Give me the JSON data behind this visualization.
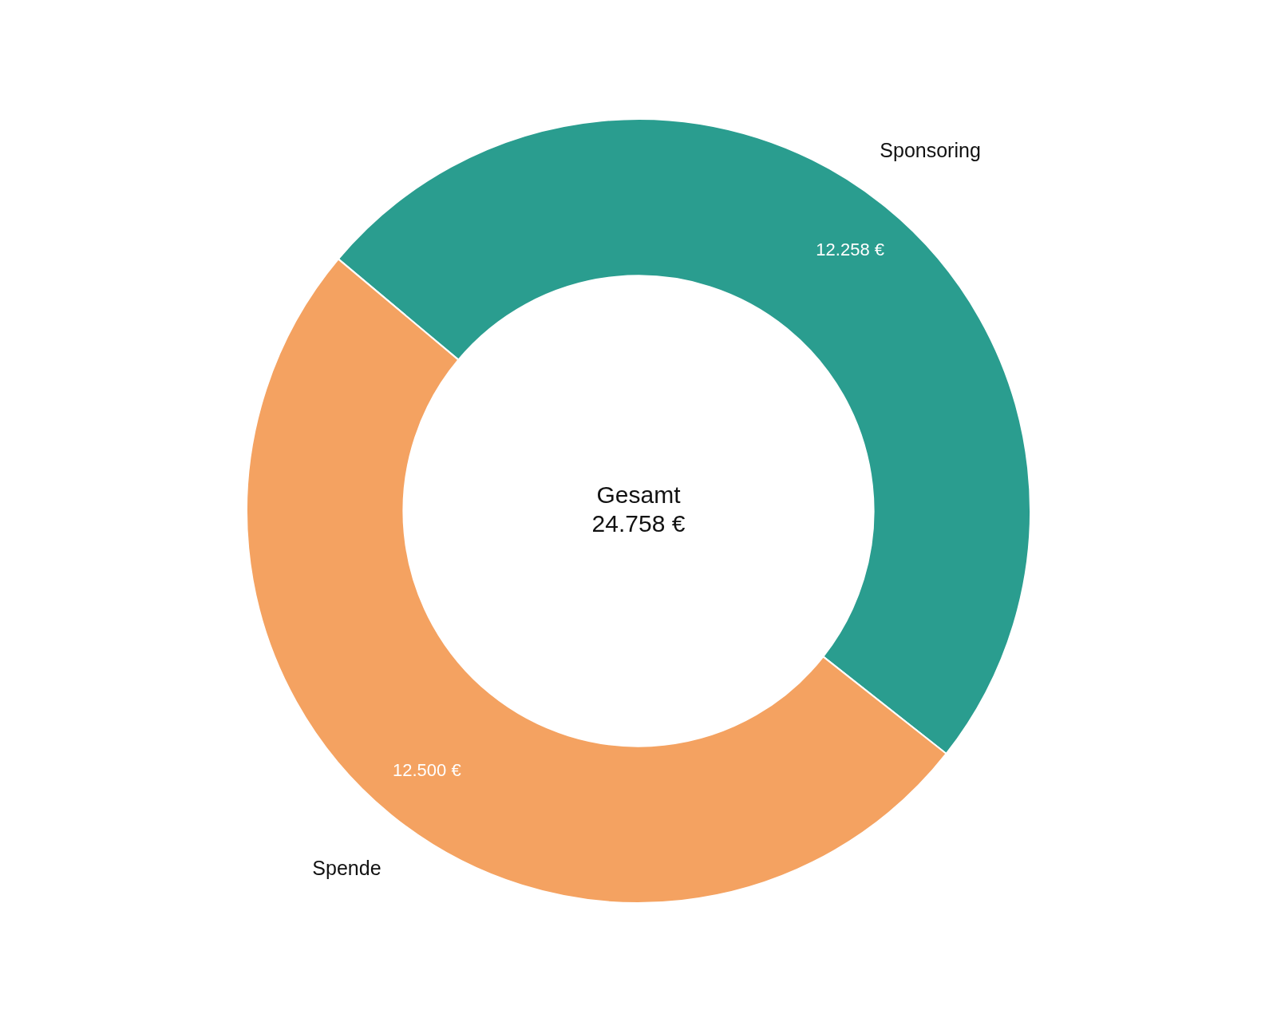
{
  "chart_data": {
    "type": "donut",
    "categories": [
      "Sponsoring",
      "Spende"
    ],
    "values": [
      12258,
      12500
    ],
    "colors": [
      "#2a9d8f",
      "#f4a261"
    ],
    "value_labels": [
      "12.258 €",
      "12.500 €"
    ],
    "annotations": [
      "Gesamt\n24.758 €"
    ]
  }
}
